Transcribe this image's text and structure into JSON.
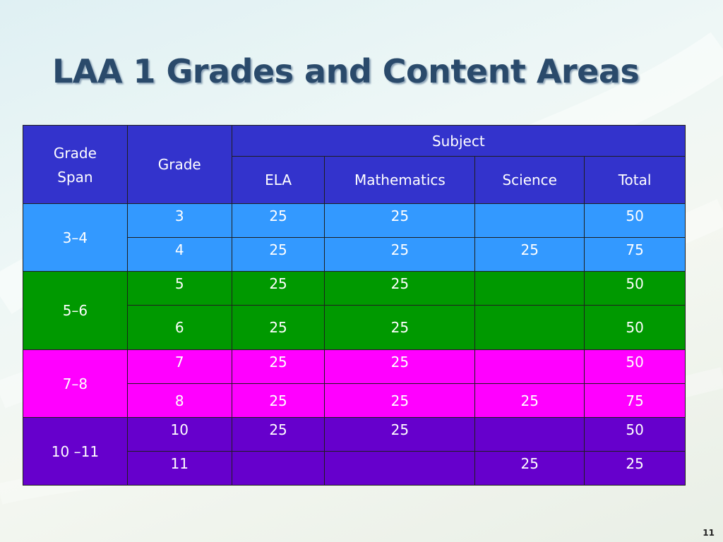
{
  "slide": {
    "title": "LAA 1 Grades and Content Areas",
    "page_number": "11"
  },
  "table": {
    "headers": {
      "grade_span_line1": "Grade",
      "grade_span_line2": "Span",
      "grade": "Grade",
      "subject": "Subject",
      "ela": "ELA",
      "mathematics": "Mathematics",
      "science": "Science",
      "total": "Total"
    },
    "groups": [
      {
        "span": "3–4",
        "color": "#3399ff",
        "rows": [
          {
            "grade": "3",
            "ela": "25",
            "math": "25",
            "science": "",
            "total": "50"
          },
          {
            "grade": "4",
            "ela": "25",
            "math": "25",
            "science": "25",
            "total": "75"
          }
        ]
      },
      {
        "span": "5–6",
        "color": "#009900",
        "rows": [
          {
            "grade": "5",
            "ela": "25",
            "math": "25",
            "science": "",
            "total": "50"
          },
          {
            "grade": "6",
            "ela": "25",
            "math": "25",
            "science": "",
            "total": "50"
          }
        ]
      },
      {
        "span": "7–8",
        "color": "#ff00ff",
        "rows": [
          {
            "grade": "7",
            "ela": "25",
            "math": "25",
            "science": "",
            "total": "50"
          },
          {
            "grade": "8",
            "ela": "25",
            "math": "25",
            "science": "25",
            "total": "75"
          }
        ]
      },
      {
        "span": "10 –11",
        "color": "#6600cc",
        "rows": [
          {
            "grade": "10",
            "ela": "25",
            "math": "25",
            "science": "",
            "total": "50"
          },
          {
            "grade": "11",
            "ela": "",
            "math": "",
            "science": "25",
            "total": "25"
          }
        ]
      }
    ]
  },
  "colors": {
    "header": "#3333cc",
    "title": "#2a4a6b"
  }
}
